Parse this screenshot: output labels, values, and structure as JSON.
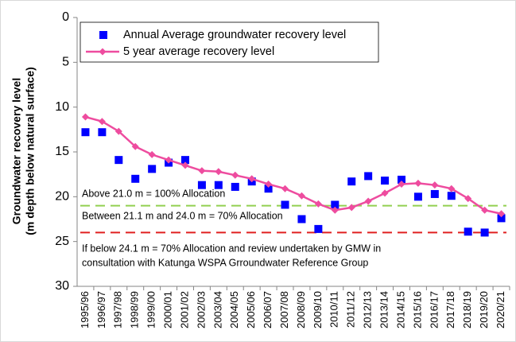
{
  "chart_data": {
    "type": "line",
    "y_title": [
      "Groundwater recovery level",
      "(m depth below natural surface)"
    ],
    "categories": [
      "1995/96",
      "1996/97",
      "1997/98",
      "1998/99",
      "1999/00",
      "2000/01",
      "2001/02",
      "2002/03",
      "2003/04",
      "2004/05",
      "2005/06",
      "2006/07",
      "2007/08",
      "2008/09",
      "2009/10",
      "2010/11",
      "2011/12",
      "2012/13",
      "2013/14",
      "2014/15",
      "2015/16",
      "2016/17",
      "2017/18",
      "2018/19",
      "2019/20",
      "2020/21"
    ],
    "series": [
      {
        "name": "Annual Average groundwater recovery level",
        "color": "#0000ff",
        "marker": "square",
        "values": [
          12.8,
          12.8,
          15.9,
          18.0,
          16.9,
          16.2,
          15.9,
          18.7,
          18.7,
          18.9,
          18.3,
          19.1,
          20.9,
          22.5,
          23.6,
          20.9,
          18.3,
          17.7,
          18.2,
          18.1,
          20.0,
          19.7,
          19.9,
          23.9,
          24.0,
          22.4
        ]
      },
      {
        "name": "5 year average recovery level",
        "color": "#ee4c9f",
        "marker": "diamond-line",
        "values": [
          11.1,
          11.6,
          12.7,
          14.4,
          15.3,
          15.9,
          16.5,
          17.1,
          17.2,
          17.6,
          18.0,
          18.6,
          19.1,
          19.9,
          20.8,
          21.5,
          21.2,
          20.5,
          19.6,
          18.6,
          18.5,
          18.7,
          19.1,
          20.2,
          21.5,
          21.9
        ]
      }
    ],
    "reference_lines": [
      {
        "value": 21,
        "color": "#92d050"
      },
      {
        "value": 24,
        "color": "#e02020"
      }
    ],
    "annotations": [
      "Above 21.0 m = 100% Allocation",
      "Between 21.1 m and 24.0 m = 70% Allocation",
      "If below 24.1 m = 70% Allocation and review undertaken by GMW in",
      "consultation with Katunga WSPA Grroundwater Reference Group"
    ],
    "ylim": [
      0,
      30
    ],
    "yticks": [
      0,
      5,
      10,
      15,
      20,
      25,
      30
    ],
    "y_inverted": true,
    "grid": false
  }
}
